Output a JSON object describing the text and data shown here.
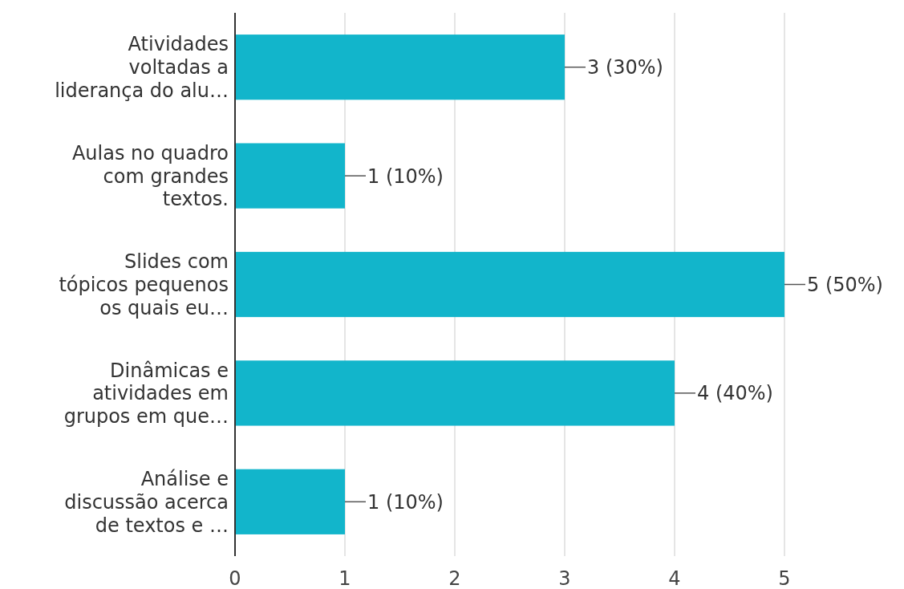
{
  "chart_data": {
    "type": "bar",
    "orientation": "horizontal",
    "categories": [
      "Atividades\nvoltadas a\nliderança do alu…",
      "Aulas no quadro\ncom grandes\ntextos.",
      "Slides com\ntópicos pequenos\nos quais eu…",
      "Dinâmicas e\natividades em\ngrupos em que…",
      "Análise e\ndiscussão acerca\nde textos e …"
    ],
    "values": [
      3,
      1,
      5,
      4,
      1
    ],
    "value_labels": [
      "3 (30%)",
      "1 (10%)",
      "5 (50%)",
      "4 (40%)",
      "1 (10%)"
    ],
    "color": "#12b5cb",
    "xlim": [
      0,
      5
    ],
    "xticks": [
      0,
      1,
      2,
      3,
      4,
      5
    ],
    "grid": "x"
  }
}
